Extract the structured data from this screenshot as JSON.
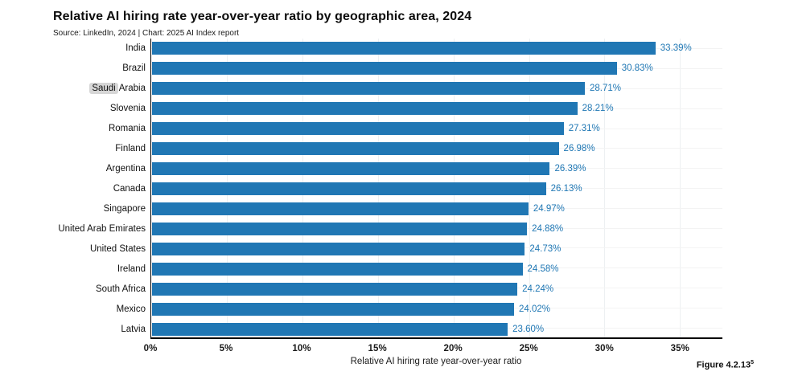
{
  "header": {
    "title": "Relative AI hiring rate year-over-year ratio by geographic area, 2024",
    "source": "Source: LinkedIn, 2024 | Chart: 2025 AI Index report"
  },
  "chart_data": {
    "type": "bar",
    "orientation": "horizontal",
    "title": "Relative AI hiring rate year-over-year ratio by geographic area, 2024",
    "categories": [
      "India",
      "Brazil",
      "Saudi Arabia",
      "Slovenia",
      "Romania",
      "Finland",
      "Argentina",
      "Canada",
      "Singapore",
      "United Arab Emirates",
      "United States",
      "Ireland",
      "South Africa",
      "Mexico",
      "Latvia"
    ],
    "values": [
      33.39,
      30.83,
      28.71,
      28.21,
      27.31,
      26.98,
      26.39,
      26.13,
      24.97,
      24.88,
      24.73,
      24.58,
      24.24,
      24.02,
      23.6
    ],
    "value_labels": [
      "33.39%",
      "30.83%",
      "28.71%",
      "28.21%",
      "27.31%",
      "26.98%",
      "26.39%",
      "26.13%",
      "24.97%",
      "24.88%",
      "24.73%",
      "24.58%",
      "24.24%",
      "24.02%",
      "23.60%"
    ],
    "xlabel": "Relative AI hiring rate year-over-year ratio",
    "ylabel": "",
    "x_ticks": [
      "0%",
      "5%",
      "10%",
      "15%",
      "20%",
      "25%",
      "30%",
      "35%"
    ],
    "x_tick_values": [
      0,
      5,
      10,
      15,
      20,
      25,
      30,
      35
    ],
    "xlim": [
      0,
      37.8
    ],
    "grid": "light vertical gridlines at each tick, faint horizontal gridlines at each category",
    "legend_position": "none",
    "bar_color": "#2077b4",
    "value_label_color": "#1f77b4",
    "annotations": {
      "highlighted_text": {
        "category": "Saudi Arabia",
        "text": "Saudi",
        "style": "gray selection highlight behind word"
      }
    }
  },
  "footer": {
    "figure_label": "Figure 4.2.13",
    "figure_superscript": "5"
  }
}
